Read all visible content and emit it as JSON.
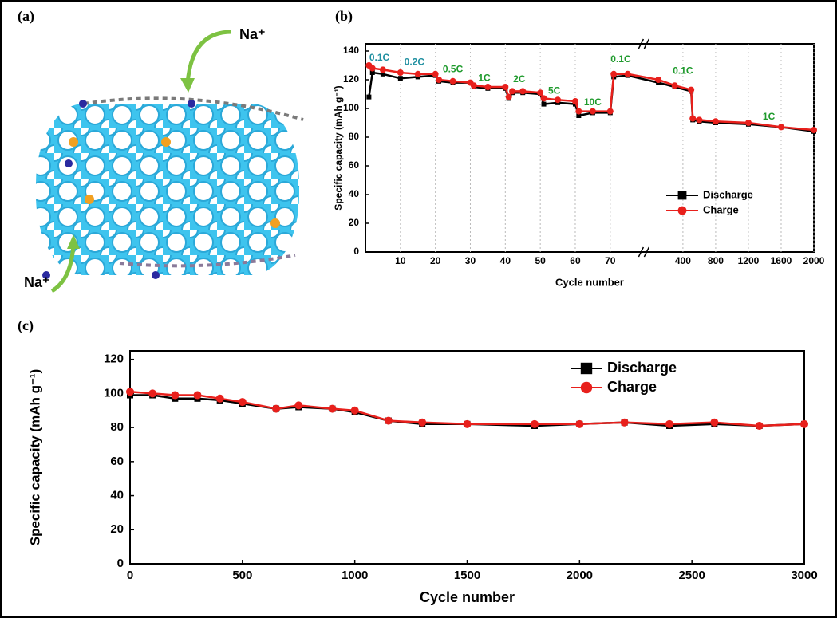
{
  "illustration": {
    "label": "(a)",
    "ion_labels": [
      "Na⁺",
      "Na⁺"
    ]
  },
  "chart_data": [
    {
      "type": "line",
      "panel_label": "(b)",
      "ylabel": "Specific capacity (mAh g⁻¹)",
      "xlabel": "Cycle number",
      "xlim_segments": [
        [
          0,
          78
        ],
        [
          0,
          2000
        ]
      ],
      "xticks": [
        10,
        20,
        30,
        40,
        50,
        60,
        70,
        400,
        800,
        1200,
        1600,
        2000
      ],
      "ylim": [
        0,
        145
      ],
      "yticks": [
        0,
        20,
        40,
        60,
        80,
        100,
        120,
        140
      ],
      "grid": true,
      "legend": "lower-right",
      "x": [
        1,
        2,
        5,
        10,
        15,
        20,
        21,
        25,
        30,
        31,
        35,
        40,
        41,
        42,
        45,
        50,
        51,
        55,
        60,
        61,
        65,
        70,
        71,
        75,
        100,
        300,
        500,
        520,
        600,
        800,
        1200,
        1600,
        2000
      ],
      "series": [
        {
          "name": "Discharge",
          "color": "#000000",
          "marker": "square",
          "values": [
            108,
            125,
            124,
            121,
            122,
            123,
            119,
            118,
            118,
            115,
            114,
            114,
            107,
            111,
            111,
            110,
            103,
            104,
            103,
            95,
            97,
            97,
            122,
            123,
            118,
            115,
            112,
            92,
            91,
            90,
            89,
            87,
            84
          ]
        },
        {
          "name": "Charge",
          "color": "#e8201c",
          "marker": "circle",
          "values": [
            130,
            128,
            127,
            125,
            124,
            124,
            120,
            119,
            118,
            116,
            115,
            115,
            108,
            112,
            112,
            111,
            107,
            106,
            105,
            98,
            98,
            98,
            124,
            124,
            120,
            116,
            113,
            93,
            92,
            91,
            90,
            87,
            85
          ]
        }
      ],
      "annotations": [
        {
          "text": "0.1C",
          "x": 4,
          "y": 135,
          "color": "#1f8fa0"
        },
        {
          "text": "0.2C",
          "x": 14,
          "y": 132,
          "color": "#1f8fa0"
        },
        {
          "text": "0.5C",
          "x": 25,
          "y": 127,
          "color": "#1e9a2c"
        },
        {
          "text": "1C",
          "x": 34,
          "y": 121,
          "color": "#1e9a2c"
        },
        {
          "text": "2C",
          "x": 44,
          "y": 120,
          "color": "#1e9a2c"
        },
        {
          "text": "5C",
          "x": 54,
          "y": 112,
          "color": "#1e9a2c"
        },
        {
          "text": "10C",
          "x": 65,
          "y": 104,
          "color": "#1e9a2c"
        },
        {
          "text": "0.1C",
          "x": 73,
          "y": 134,
          "color": "#1e9a2c"
        },
        {
          "text": "0.1C",
          "x": 400,
          "y": 126,
          "color": "#1e9a2c"
        },
        {
          "text": "1C",
          "x": 1450,
          "y": 94,
          "color": "#1e9a2c"
        }
      ]
    },
    {
      "type": "line",
      "panel_label": "(c)",
      "ylabel": "Specific capacity (mAh g⁻¹)",
      "xlabel": "Cycle number",
      "xlim": [
        0,
        3000
      ],
      "xticks": [
        0,
        500,
        1000,
        1500,
        2000,
        2500,
        3000
      ],
      "ylim": [
        0,
        125
      ],
      "yticks": [
        0,
        20,
        40,
        60,
        80,
        100,
        120
      ],
      "grid": false,
      "legend": "upper-right",
      "x": [
        0,
        100,
        200,
        300,
        400,
        500,
        650,
        750,
        900,
        1000,
        1150,
        1300,
        1500,
        1800,
        2000,
        2200,
        2400,
        2600,
        2800,
        3000
      ],
      "series": [
        {
          "name": "Discharge",
          "color": "#000000",
          "marker": "square",
          "values": [
            99,
            99,
            97,
            97,
            96,
            94,
            91,
            92,
            91,
            89,
            84,
            82,
            82,
            81,
            82,
            83,
            81,
            82,
            81,
            82
          ]
        },
        {
          "name": "Charge",
          "color": "#e8201c",
          "marker": "circle",
          "values": [
            101,
            100,
            99,
            99,
            97,
            95,
            91,
            93,
            91,
            90,
            84,
            83,
            82,
            82,
            82,
            83,
            82,
            83,
            81,
            82
          ]
        }
      ]
    }
  ]
}
